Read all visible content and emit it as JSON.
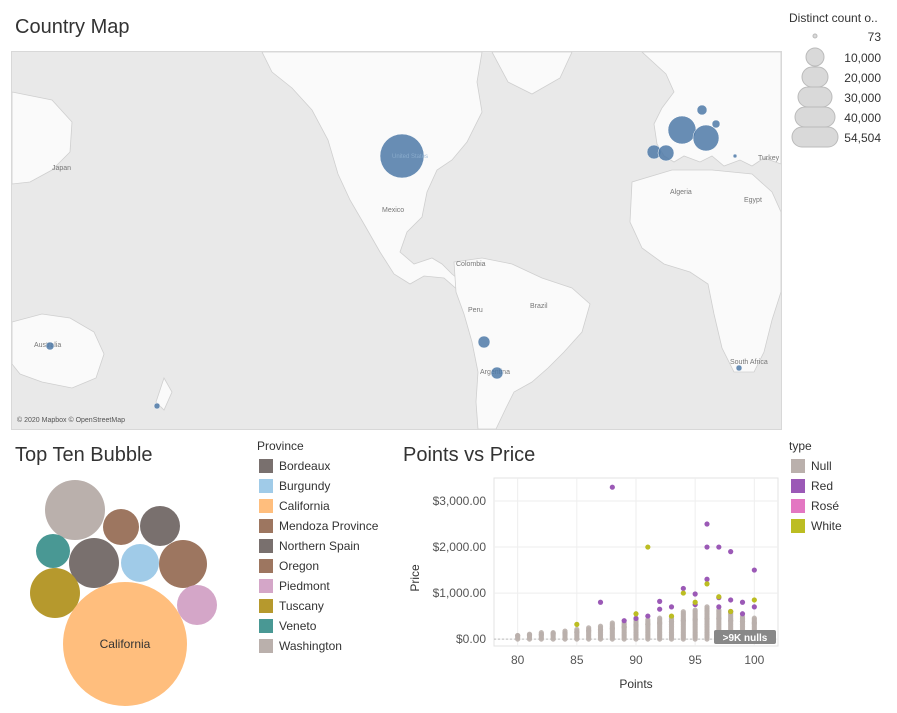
{
  "map": {
    "title": "Country Map",
    "credit": "© 2020 Mapbox © OpenStreetMap",
    "place_labels": [
      "Japan",
      "Mexico",
      "Colombia",
      "Peru",
      "Brazil",
      "Australia",
      "Argentina",
      "Algeria",
      "Egypt",
      "Turkey",
      "South Africa",
      "United States"
    ],
    "size_legend": {
      "title": "Distinct count o..",
      "values": [
        "73",
        "10,000",
        "20,000",
        "30,000",
        "40,000",
        "54,504"
      ]
    },
    "bubble_color": "#4e79a7"
  },
  "bubble": {
    "title": "Top Ten Bubble",
    "center_label": "California",
    "legend_title": "Province",
    "provinces": [
      {
        "name": "Bordeaux",
        "color": "#79706e"
      },
      {
        "name": "Burgundy",
        "color": "#a0cbe8"
      },
      {
        "name": "California",
        "color": "#ffbe7d"
      },
      {
        "name": "Mendoza Province",
        "color": "#9d7660"
      },
      {
        "name": "Northern Spain",
        "color": "#79706e"
      },
      {
        "name": "Oregon",
        "color": "#9d7660"
      },
      {
        "name": "Piedmont",
        "color": "#d4a6c8"
      },
      {
        "name": "Tuscany",
        "color": "#b6992d"
      },
      {
        "name": "Veneto",
        "color": "#499894"
      },
      {
        "name": "Washington",
        "color": "#bab0ac"
      }
    ]
  },
  "scatter": {
    "title": "Points vs Price",
    "null_badge": ">9K nulls",
    "legend_title": "type",
    "types": [
      {
        "name": "Null",
        "color": "#bab0ac"
      },
      {
        "name": "Red",
        "color": "#9b59b6"
      },
      {
        "name": "Rosé",
        "color": "#e377c2"
      },
      {
        "name": "White",
        "color": "#bcbd22"
      }
    ]
  },
  "chart_data": {
    "type": "scatter",
    "xlabel": "Points",
    "ylabel": "Price",
    "xlim": [
      78,
      102
    ],
    "ylim": [
      -150,
      3500
    ],
    "x_ticks": [
      80,
      85,
      90,
      95,
      100
    ],
    "x_tick_labels": [
      "80",
      "85",
      "90",
      "95",
      "100"
    ],
    "y_ticks": [
      0,
      1000,
      2000,
      3000
    ],
    "y_tick_labels": [
      "$0.00",
      "$1,000.00",
      "$2,000.00",
      "$3,000.00"
    ],
    "grid": true,
    "series": [
      {
        "name": "Red",
        "points": [
          [
            88,
            3300
          ],
          [
            96,
            2500
          ],
          [
            96,
            2000
          ],
          [
            97,
            2000
          ],
          [
            98,
            1900
          ],
          [
            100,
            1500
          ],
          [
            87,
            800
          ],
          [
            94,
            1100
          ],
          [
            95,
            980
          ],
          [
            96,
            1300
          ],
          [
            97,
            900
          ],
          [
            98,
            850
          ],
          [
            99,
            800
          ],
          [
            93,
            700
          ],
          [
            92,
            650
          ],
          [
            91,
            500
          ],
          [
            90,
            450
          ],
          [
            89,
            400
          ],
          [
            92,
            820
          ],
          [
            95,
            750
          ],
          [
            97,
            700
          ],
          [
            98,
            600
          ],
          [
            99,
            550
          ],
          [
            100,
            700
          ]
        ]
      },
      {
        "name": "White",
        "points": [
          [
            91,
            2000
          ],
          [
            96,
            1200
          ],
          [
            97,
            920
          ],
          [
            94,
            1000
          ],
          [
            95,
            800
          ],
          [
            90,
            550
          ],
          [
            85,
            320
          ],
          [
            100,
            850
          ],
          [
            98,
            600
          ],
          [
            93,
            500
          ]
        ]
      },
      {
        "name": "Rosé",
        "points": []
      },
      {
        "name": "Null",
        "points": [
          [
            80,
            80
          ],
          [
            81,
            90
          ],
          [
            82,
            100
          ],
          [
            83,
            120
          ],
          [
            84,
            130
          ],
          [
            85,
            150
          ],
          [
            86,
            180
          ],
          [
            87,
            200
          ],
          [
            88,
            230
          ],
          [
            89,
            260
          ],
          [
            90,
            300
          ],
          [
            91,
            320
          ],
          [
            92,
            350
          ],
          [
            93,
            380
          ],
          [
            94,
            400
          ],
          [
            95,
            420
          ],
          [
            96,
            450
          ],
          [
            97,
            450
          ],
          [
            98,
            400
          ],
          [
            99,
            380
          ],
          [
            100,
            350
          ]
        ]
      }
    ],
    "column_max": [
      [
        80,
        100
      ],
      [
        81,
        120
      ],
      [
        82,
        160
      ],
      [
        83,
        170
      ],
      [
        84,
        190
      ],
      [
        85,
        230
      ],
      [
        86,
        260
      ],
      [
        87,
        300
      ],
      [
        88,
        350
      ],
      [
        89,
        380
      ],
      [
        90,
        420
      ],
      [
        91,
        450
      ],
      [
        92,
        480
      ],
      [
        93,
        520
      ],
      [
        94,
        600
      ],
      [
        95,
        650
      ],
      [
        96,
        700
      ],
      [
        97,
        650
      ],
      [
        98,
        600
      ],
      [
        99,
        500
      ],
      [
        100,
        480
      ]
    ]
  }
}
